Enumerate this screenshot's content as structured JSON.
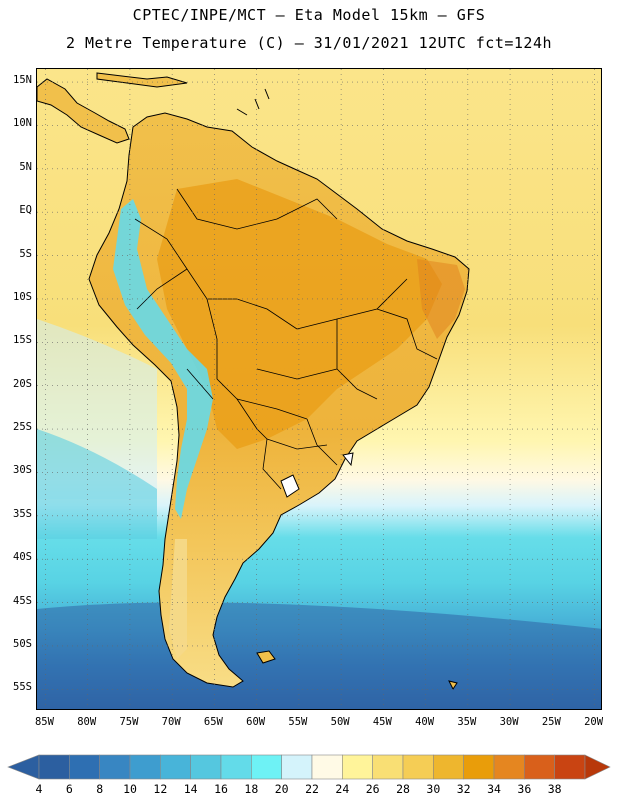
{
  "header": {
    "line1": "CPTEC/INPE/MCT –  Eta Model 15km – GFS",
    "line2": "2 Metre Temperature (C) – 31/01/2021 12UTC fct=124h"
  },
  "map": {
    "lat_labels": [
      "15N",
      "10N",
      "5N",
      "EQ",
      "5S",
      "10S",
      "15S",
      "20S",
      "25S",
      "30S",
      "35S",
      "40S",
      "45S",
      "50S",
      "55S"
    ],
    "lon_labels": [
      "85W",
      "80W",
      "75W",
      "70W",
      "65W",
      "60W",
      "55W",
      "50W",
      "45W",
      "40W",
      "35W",
      "30W",
      "25W",
      "20W"
    ],
    "extent": {
      "lon_min": -86,
      "lon_max": -19,
      "lat_min": -57.5,
      "lat_max": 16.5
    }
  },
  "colorbar": {
    "labels": [
      "4",
      "6",
      "8",
      "10",
      "12",
      "14",
      "16",
      "18",
      "20",
      "22",
      "24",
      "26",
      "28",
      "30",
      "32",
      "34",
      "36",
      "38"
    ],
    "colors": [
      "#2c5fa0",
      "#2e6fb2",
      "#3886c2",
      "#3e9dcf",
      "#48b4d9",
      "#55c7df",
      "#63dbe9",
      "#6ef2f5",
      "#d4f3fb",
      "#fffae6",
      "#fff49a",
      "#f9df74",
      "#f5cd55",
      "#eeb62e",
      "#e99d0a",
      "#e58620",
      "#d9601b",
      "#c94412",
      "#b8380a"
    ]
  }
}
